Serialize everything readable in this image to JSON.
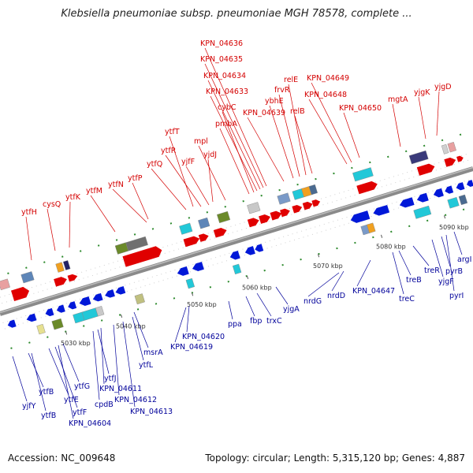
{
  "header": {
    "title": "Klebsiella pneumoniae subsp. pneumoniae MGH 78578, complete ..."
  },
  "footer": {
    "accession": "Accession: NC_009648",
    "stats": "Topology: circular; Length: 5,315,120 bp; Genes: 4,887"
  },
  "colors": {
    "upper_strand": "#e00000",
    "lower_strand": "#0018d8",
    "upper_label": "#d40000",
    "lower_label": "#00009a",
    "backbone": "#8a8a8a"
  },
  "ticks": [
    "5030 kbp",
    "5040 kbp",
    "5050 kbp",
    "5060 kbp",
    "5070 kbp",
    "5080 kbp",
    "5090 kbp"
  ],
  "upper_labels": [
    "ytfH",
    "cysQ",
    "ytfK",
    "ytfM",
    "ytfN",
    "ytfP",
    "ytfQ",
    "ytfR",
    "yjfF",
    "ytfT",
    "yjdJ",
    "mpl",
    "pmbA",
    "cybC",
    "KPN_04633",
    "KPN_04634",
    "KPN_04635",
    "KPN_04636",
    "KPN_04639",
    "ybhE",
    "frvR",
    "relE",
    "relB",
    "KPN_04648",
    "KPN_04649",
    "KPN_04650",
    "mgtA",
    "yjgK",
    "yjgD"
  ],
  "lower_labels": [
    "yjfY",
    "ytfB",
    "ytfB",
    "ytfE",
    "ytfF",
    "ytfG",
    "KPN_04604",
    "cpdB",
    "ytfJ",
    "KPN_04611",
    "KPN_04612",
    "KPN_04613",
    "ytfL",
    "msrA",
    "KPN_04619",
    "KPN_04620",
    "ppa",
    "fbp",
    "trxC",
    "yjgA",
    "nrdG",
    "nrdD",
    "KPN_04647",
    "treC",
    "treB",
    "treR",
    "yjgF",
    "pyrB",
    "pyrI",
    "argI"
  ]
}
